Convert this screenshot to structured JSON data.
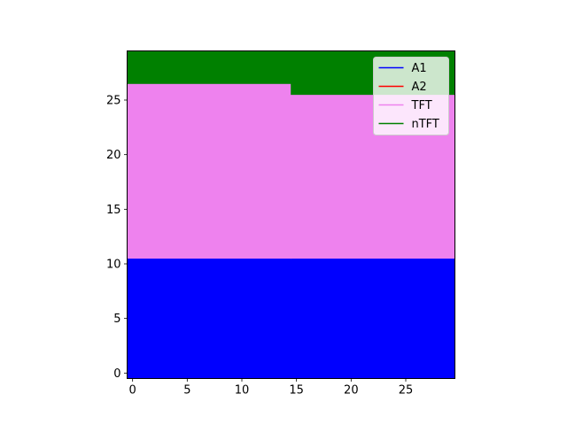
{
  "chart_data": {
    "type": "heatmap",
    "title": "",
    "xlabel": "",
    "ylabel": "",
    "xlim": [
      -0.5,
      29.5
    ],
    "ylim": [
      -0.5,
      29.5
    ],
    "x_ticks": [
      0,
      5,
      10,
      15,
      20,
      25
    ],
    "y_ticks": [
      0,
      5,
      10,
      15,
      20,
      25
    ],
    "grid": false,
    "legend_position": "top-right",
    "categories": [
      {
        "name": "A1",
        "color": "#0000ff"
      },
      {
        "name": "A2",
        "color": "#ff0000"
      },
      {
        "name": "TFT",
        "color": "#ee82ee"
      },
      {
        "name": "nTFT",
        "color": "#008000"
      }
    ],
    "regions": [
      {
        "category": "A1",
        "x": [
          0,
          29
        ],
        "y": [
          0,
          10
        ]
      },
      {
        "category": "TFT",
        "x": [
          0,
          14
        ],
        "y": [
          11,
          26
        ]
      },
      {
        "category": "TFT",
        "x": [
          15,
          29
        ],
        "y": [
          11,
          25
        ]
      },
      {
        "category": "nTFT",
        "x": [
          0,
          14
        ],
        "y": [
          27,
          29
        ]
      },
      {
        "category": "nTFT",
        "x": [
          15,
          29
        ],
        "y": [
          26,
          29
        ]
      }
    ]
  }
}
